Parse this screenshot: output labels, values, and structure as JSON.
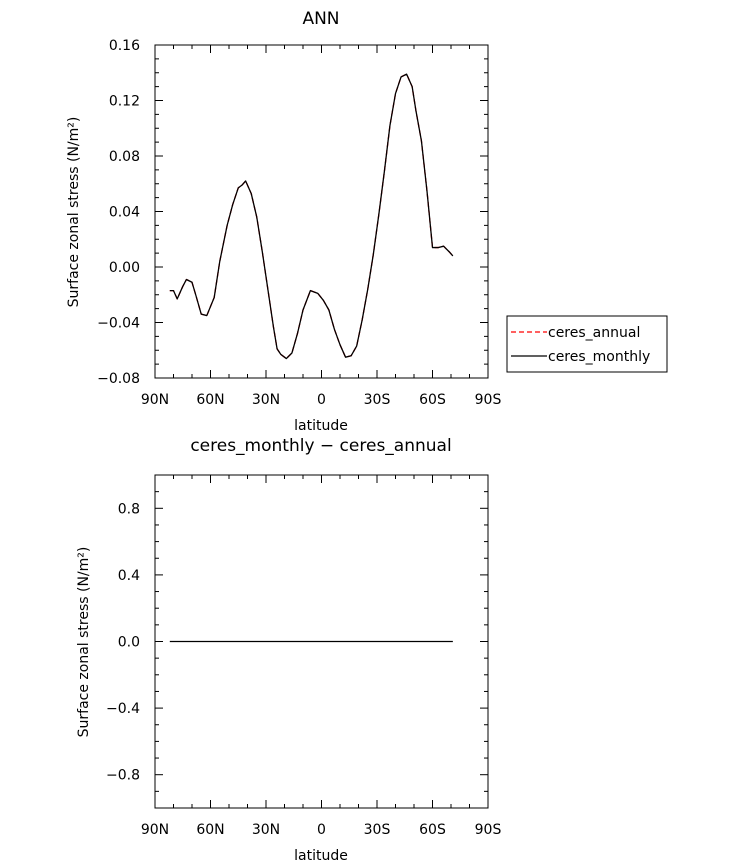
{
  "chart_data": [
    {
      "type": "line",
      "title": "ANN",
      "xlabel": "latitude",
      "ylabel": "Surface zonal stress (N/m²)",
      "xlim": [
        90,
        -90
      ],
      "ylim": [
        -0.08,
        0.16
      ],
      "x_ticks": [
        90,
        60,
        30,
        0,
        -30,
        -60,
        -90
      ],
      "x_tick_labels": [
        "90N",
        "60N",
        "30N",
        "0",
        "30S",
        "60S",
        "90S"
      ],
      "y_ticks": [
        -0.08,
        -0.04,
        0.0,
        0.04,
        0.08,
        0.12,
        0.16
      ],
      "y_tick_labels": [
        "−0.08",
        "−0.04",
        "0.00",
        "0.04",
        "0.08",
        "0.12",
        "0.16"
      ],
      "legend": {
        "placement": "right",
        "entries": [
          {
            "label": "ceres_annual",
            "style": "dashed",
            "color": "#ff0000"
          },
          {
            "label": "ceres_monthly",
            "style": "solid",
            "color": "#000000"
          }
        ]
      },
      "series": [
        {
          "name": "ceres_annual",
          "color": "#ff0000",
          "style": "dashed",
          "x": [
            82,
            80,
            78,
            75,
            73,
            70,
            68,
            65,
            62,
            58,
            55,
            51,
            48,
            45,
            43,
            41,
            38,
            35,
            32,
            29,
            26,
            24,
            22,
            19,
            16,
            13,
            10,
            6,
            2,
            -1,
            -4,
            -7,
            -10,
            -13,
            -16,
            -19,
            -22,
            -25,
            -28,
            -31,
            -34,
            -37,
            -40,
            -43,
            -46,
            -49,
            -51,
            -54,
            -57,
            -60,
            -63,
            -66,
            -69,
            -71
          ],
          "y": [
            -0.017,
            -0.017,
            -0.023,
            -0.014,
            -0.009,
            -0.011,
            -0.02,
            -0.034,
            -0.035,
            -0.022,
            0.004,
            0.03,
            0.045,
            0.057,
            0.059,
            0.062,
            0.053,
            0.036,
            0.011,
            -0.016,
            -0.043,
            -0.059,
            -0.063,
            -0.066,
            -0.062,
            -0.048,
            -0.031,
            -0.017,
            -0.019,
            -0.024,
            -0.031,
            -0.045,
            -0.056,
            -0.065,
            -0.064,
            -0.057,
            -0.038,
            -0.016,
            0.009,
            0.038,
            0.069,
            0.102,
            0.125,
            0.137,
            0.139,
            0.13,
            0.113,
            0.091,
            0.055,
            0.014,
            0.014,
            0.015,
            0.011,
            0.008
          ]
        },
        {
          "name": "ceres_monthly",
          "color": "#000000",
          "style": "solid",
          "x": [
            82,
            80,
            78,
            75,
            73,
            70,
            68,
            65,
            62,
            58,
            55,
            51,
            48,
            45,
            43,
            41,
            38,
            35,
            32,
            29,
            26,
            24,
            22,
            19,
            16,
            13,
            10,
            6,
            2,
            -1,
            -4,
            -7,
            -10,
            -13,
            -16,
            -19,
            -22,
            -25,
            -28,
            -31,
            -34,
            -37,
            -40,
            -43,
            -46,
            -49,
            -51,
            -54,
            -57,
            -60,
            -63,
            -66,
            -69,
            -71
          ],
          "y": [
            -0.017,
            -0.017,
            -0.023,
            -0.014,
            -0.009,
            -0.011,
            -0.02,
            -0.034,
            -0.035,
            -0.022,
            0.004,
            0.03,
            0.045,
            0.057,
            0.059,
            0.062,
            0.053,
            0.036,
            0.011,
            -0.016,
            -0.043,
            -0.059,
            -0.063,
            -0.066,
            -0.062,
            -0.048,
            -0.031,
            -0.017,
            -0.019,
            -0.024,
            -0.031,
            -0.045,
            -0.056,
            -0.065,
            -0.064,
            -0.057,
            -0.038,
            -0.016,
            0.009,
            0.038,
            0.069,
            0.102,
            0.125,
            0.137,
            0.139,
            0.13,
            0.113,
            0.091,
            0.055,
            0.014,
            0.014,
            0.015,
            0.011,
            0.008
          ]
        }
      ]
    },
    {
      "type": "line",
      "title": "ceres_monthly − ceres_annual",
      "xlabel": "latitude",
      "ylabel": "Surface zonal stress (N/m²)",
      "xlim": [
        90,
        -90
      ],
      "ylim": [
        -1.0,
        1.0
      ],
      "x_ticks": [
        90,
        60,
        30,
        0,
        -30,
        -60,
        -90
      ],
      "x_tick_labels": [
        "90N",
        "60N",
        "30N",
        "0",
        "30S",
        "60S",
        "90S"
      ],
      "y_ticks": [
        -0.8,
        -0.4,
        0.0,
        0.4,
        0.8
      ],
      "y_tick_labels": [
        "−0.8",
        "−0.4",
        "0.0",
        "0.4",
        "0.8"
      ],
      "series": [
        {
          "color": "#000000",
          "style": "solid",
          "x": [
            82,
            -71
          ],
          "y": [
            0.0,
            0.0
          ]
        }
      ]
    }
  ]
}
